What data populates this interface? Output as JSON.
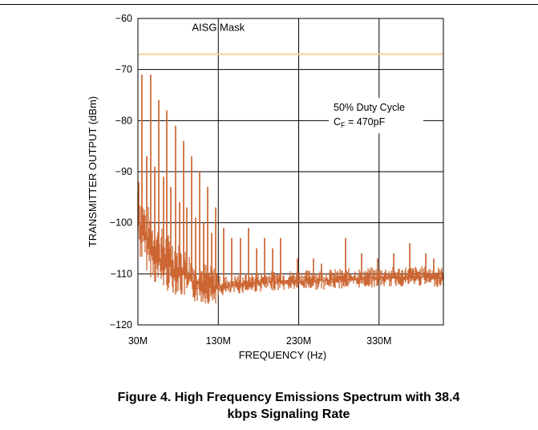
{
  "chart_data": {
    "type": "line",
    "title": "",
    "xlabel": "FREQUENCY (Hz)",
    "ylabel": "TRANSMITTER OUTPUT (dBm)",
    "xlim": [
      30,
      410
    ],
    "ylim": [
      -120,
      -60
    ],
    "x_ticks": [
      {
        "value": 30,
        "label": "30M"
      },
      {
        "value": 130,
        "label": "130M"
      },
      {
        "value": 230,
        "label": "230M"
      },
      {
        "value": 330,
        "label": "330M"
      }
    ],
    "y_ticks": [
      {
        "value": -60,
        "label": "−60"
      },
      {
        "value": -70,
        "label": "−70"
      },
      {
        "value": -80,
        "label": "−80"
      },
      {
        "value": -90,
        "label": "−90"
      },
      {
        "value": -100,
        "label": "−100"
      },
      {
        "value": -110,
        "label": "−110"
      },
      {
        "value": -120,
        "label": "−120"
      }
    ],
    "grid": true,
    "mask": {
      "label": "AISG Mask",
      "level": -67,
      "color": "#f7cf9c"
    },
    "annotation": {
      "line1": "50% Duty Cycle",
      "line2_main": "C",
      "line2_sub": "F",
      "line2_rest": " = 470pF"
    },
    "series": [
      {
        "color": "#cc6633",
        "noise_floor": [
          [
            30,
            -98
          ],
          [
            33,
            -101
          ],
          [
            36,
            -102
          ],
          [
            40,
            -103
          ],
          [
            45,
            -104.5
          ],
          [
            50,
            -106
          ],
          [
            55,
            -107
          ],
          [
            60,
            -107.5
          ],
          [
            70,
            -108.5
          ],
          [
            80,
            -109.5
          ],
          [
            90,
            -110.5
          ],
          [
            100,
            -111.5
          ],
          [
            110,
            -112
          ],
          [
            120,
            -112.5
          ],
          [
            140,
            -112.5
          ],
          [
            160,
            -112
          ],
          [
            200,
            -111.5
          ],
          [
            260,
            -111.3
          ],
          [
            300,
            -111
          ],
          [
            340,
            -110.8
          ],
          [
            380,
            -110.6
          ],
          [
            410,
            -110.8
          ]
        ],
        "spikes": [
          {
            "x": 31,
            "y": -92
          },
          {
            "x": 35,
            "y": -71
          },
          {
            "x": 41,
            "y": -87
          },
          {
            "x": 46,
            "y": -71
          },
          {
            "x": 51,
            "y": -89
          },
          {
            "x": 56,
            "y": -76
          },
          {
            "x": 62,
            "y": -91
          },
          {
            "x": 66,
            "y": -78
          },
          {
            "x": 71,
            "y": -93
          },
          {
            "x": 77,
            "y": -81
          },
          {
            "x": 82,
            "y": -96
          },
          {
            "x": 87,
            "y": -84
          },
          {
            "x": 91,
            "y": -97
          },
          {
            "x": 97,
            "y": -87
          },
          {
            "x": 102,
            "y": -99
          },
          {
            "x": 107,
            "y": -90
          },
          {
            "x": 112,
            "y": -100
          },
          {
            "x": 117,
            "y": -93
          },
          {
            "x": 122,
            "y": -102
          },
          {
            "x": 127,
            "y": -97
          },
          {
            "x": 137,
            "y": -101
          },
          {
            "x": 147,
            "y": -103
          },
          {
            "x": 158,
            "y": -103
          },
          {
            "x": 168,
            "y": -101
          },
          {
            "x": 178,
            "y": -105
          },
          {
            "x": 188,
            "y": -103
          },
          {
            "x": 198,
            "y": -105
          },
          {
            "x": 208,
            "y": -103
          },
          {
            "x": 228,
            "y": -107
          },
          {
            "x": 248,
            "y": -107
          },
          {
            "x": 258,
            "y": -108
          },
          {
            "x": 288,
            "y": -103
          },
          {
            "x": 308,
            "y": -106
          },
          {
            "x": 328,
            "y": -107
          },
          {
            "x": 348,
            "y": -106
          },
          {
            "x": 368,
            "y": -104
          },
          {
            "x": 388,
            "y": -106
          },
          {
            "x": 398,
            "y": -107
          }
        ]
      }
    ]
  },
  "caption": {
    "line1": "Figure 4. High Frequency Emissions Spectrum with 38.4",
    "line2": "kbps Signaling Rate"
  }
}
